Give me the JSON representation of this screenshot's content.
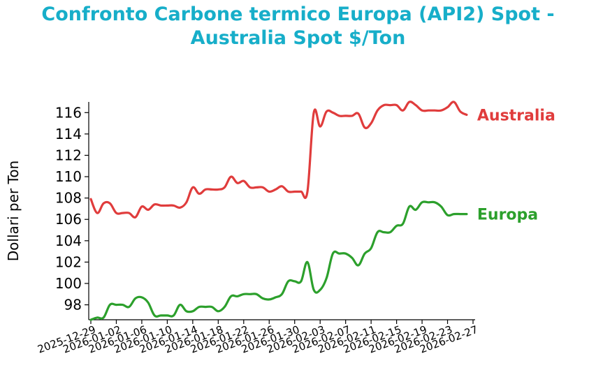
{
  "chart_data": {
    "type": "line",
    "title": [
      "Confronto Carbone termico Europa (API2) Spot -",
      "Australia Spot $/Ton"
    ],
    "ylabel": "Dollari per Ton",
    "xlabel": "",
    "xlim": [
      "2025-12-29",
      "2026-02-27"
    ],
    "ylim": [
      96.6,
      117
    ],
    "yticks": [
      98,
      100,
      102,
      104,
      106,
      108,
      110,
      112,
      114,
      116
    ],
    "xticks": [
      "2025-12-29",
      "2026-01-02",
      "2026-01-06",
      "2026-01-10",
      "2026-01-14",
      "2026-01-18",
      "2026-01-22",
      "2026-01-26",
      "2026-01-30",
      "2026-02-03",
      "2026-02-07",
      "2026-02-11",
      "2026-02-15",
      "2026-02-19",
      "2026-02-23",
      "2026-02-27"
    ],
    "grid": false,
    "legend": "inline labels at right end of each line",
    "x": [
      "2025-12-29",
      "2025-12-30",
      "2025-12-31",
      "2026-01-01",
      "2026-01-02",
      "2026-01-03",
      "2026-01-04",
      "2026-01-05",
      "2026-01-06",
      "2026-01-07",
      "2026-01-08",
      "2026-01-09",
      "2026-01-10",
      "2026-01-11",
      "2026-01-12",
      "2026-01-13",
      "2026-01-14",
      "2026-01-15",
      "2026-01-16",
      "2026-01-17",
      "2026-01-18",
      "2026-01-19",
      "2026-01-20",
      "2026-01-21",
      "2026-01-22",
      "2026-01-23",
      "2026-01-24",
      "2026-01-25",
      "2026-01-26",
      "2026-01-27",
      "2026-01-28",
      "2026-01-29",
      "2026-01-30",
      "2026-01-31",
      "2026-02-01",
      "2026-02-02",
      "2026-02-03",
      "2026-02-04",
      "2026-02-05",
      "2026-02-06",
      "2026-02-07",
      "2026-02-08",
      "2026-02-09",
      "2026-02-10",
      "2026-02-11",
      "2026-02-12",
      "2026-02-13",
      "2026-02-14",
      "2026-02-15",
      "2026-02-16",
      "2026-02-17",
      "2026-02-18",
      "2026-02-19",
      "2026-02-20",
      "2026-02-21",
      "2026-02-22",
      "2026-02-23",
      "2026-02-24",
      "2026-02-25",
      "2026-02-26"
    ],
    "series": [
      {
        "name": "Australia",
        "color": "#e03c3c",
        "values": [
          107.9,
          106.6,
          107.5,
          107.5,
          106.6,
          106.6,
          106.6,
          106.2,
          107.2,
          106.9,
          107.4,
          107.3,
          107.3,
          107.3,
          107.1,
          107.6,
          109.0,
          108.4,
          108.8,
          108.8,
          108.8,
          109.0,
          110.0,
          109.4,
          109.6,
          109.0,
          109.0,
          109.0,
          108.6,
          108.8,
          109.1,
          108.6,
          108.6,
          108.6,
          108.6,
          116.0,
          114.7,
          116.1,
          116.0,
          115.7,
          115.7,
          115.7,
          115.9,
          114.6,
          115.0,
          116.2,
          116.7,
          116.7,
          116.7,
          116.2,
          117.0,
          116.7,
          116.2,
          116.2,
          116.2,
          116.2,
          116.5,
          117.0,
          116.1,
          115.8
        ]
      },
      {
        "name": "Europa",
        "color": "#2ca02c",
        "values": [
          96.6,
          96.8,
          96.8,
          98.0,
          98.0,
          98.0,
          97.8,
          98.6,
          98.7,
          98.2,
          97.0,
          97.0,
          97.0,
          97.0,
          98.0,
          97.4,
          97.4,
          97.8,
          97.8,
          97.8,
          97.4,
          97.8,
          98.8,
          98.8,
          99.0,
          99.0,
          99.0,
          98.6,
          98.5,
          98.7,
          99.0,
          100.2,
          100.2,
          100.2,
          102.0,
          99.4,
          99.4,
          100.5,
          102.8,
          102.8,
          102.8,
          102.4,
          101.7,
          102.8,
          103.3,
          104.8,
          104.8,
          104.8,
          105.4,
          105.6,
          107.2,
          106.9,
          107.6,
          107.6,
          107.6,
          107.2,
          106.4,
          106.5,
          106.5,
          106.5
        ]
      }
    ]
  }
}
